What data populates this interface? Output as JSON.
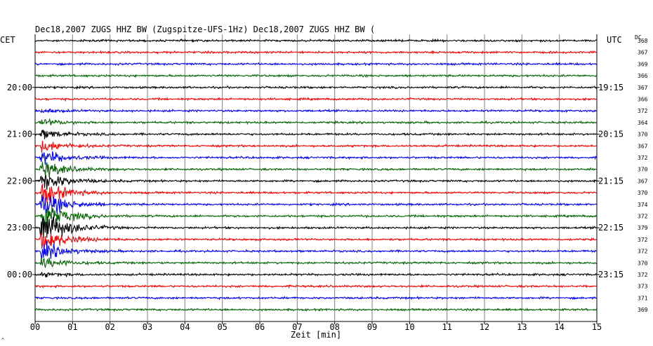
{
  "header": {
    "title": "Dec18,2007   ZUGS HHZ BW (Zugspitze-UFS-1Hz) Dec18,2007   ZUGS HHZ BW (",
    "left_zone": "CET",
    "right_zone": "UTC",
    "dc_label": "DC",
    "corner_mark": "^"
  },
  "colors": {
    "trace_cycle": [
      "#000000",
      "#ff0000",
      "#0000ff",
      "#006400"
    ],
    "grid": "#808080",
    "background": "#ffffff"
  },
  "chart_data": {
    "type": "line",
    "title": "Dec18,2007   ZUGS HHZ BW (Zugspitze-UFS-1Hz) Dec18,2007   ZUGS HHZ BW (",
    "xlabel": "Zeit [min]",
    "ylabel": "",
    "xlim": [
      0,
      15
    ],
    "x_ticks": [
      "00",
      "01",
      "02",
      "03",
      "04",
      "05",
      "06",
      "07",
      "08",
      "09",
      "10",
      "11",
      "12",
      "13",
      "14",
      "15"
    ],
    "grid": true,
    "trace_count": 24,
    "minutes_per_trace": 15,
    "left_time_labels": [
      {
        "trace": 4,
        "label": "20:00"
      },
      {
        "trace": 8,
        "label": "21:00"
      },
      {
        "trace": 12,
        "label": "22:00"
      },
      {
        "trace": 16,
        "label": "23:00"
      },
      {
        "trace": 20,
        "label": "00:00"
      }
    ],
    "right_time_labels": [
      {
        "trace": 4,
        "label": "19:15"
      },
      {
        "trace": 8,
        "label": "20:15"
      },
      {
        "trace": 12,
        "label": "21:15"
      },
      {
        "trace": 16,
        "label": "22:15"
      },
      {
        "trace": 20,
        "label": "23:15"
      }
    ],
    "dc_offsets": [
      "368",
      "367",
      "369",
      "366",
      "367",
      "366",
      "372",
      "364",
      "370",
      "367",
      "372",
      "370",
      "367",
      "370",
      "374",
      "372",
      "379",
      "372",
      "372",
      "370",
      "372",
      "373",
      "371",
      "369"
    ],
    "event": {
      "description": "earthquake signal",
      "start_minute": 0.12,
      "peak_trace": 16,
      "start_trace": 5,
      "end_trace": 23
    }
  }
}
